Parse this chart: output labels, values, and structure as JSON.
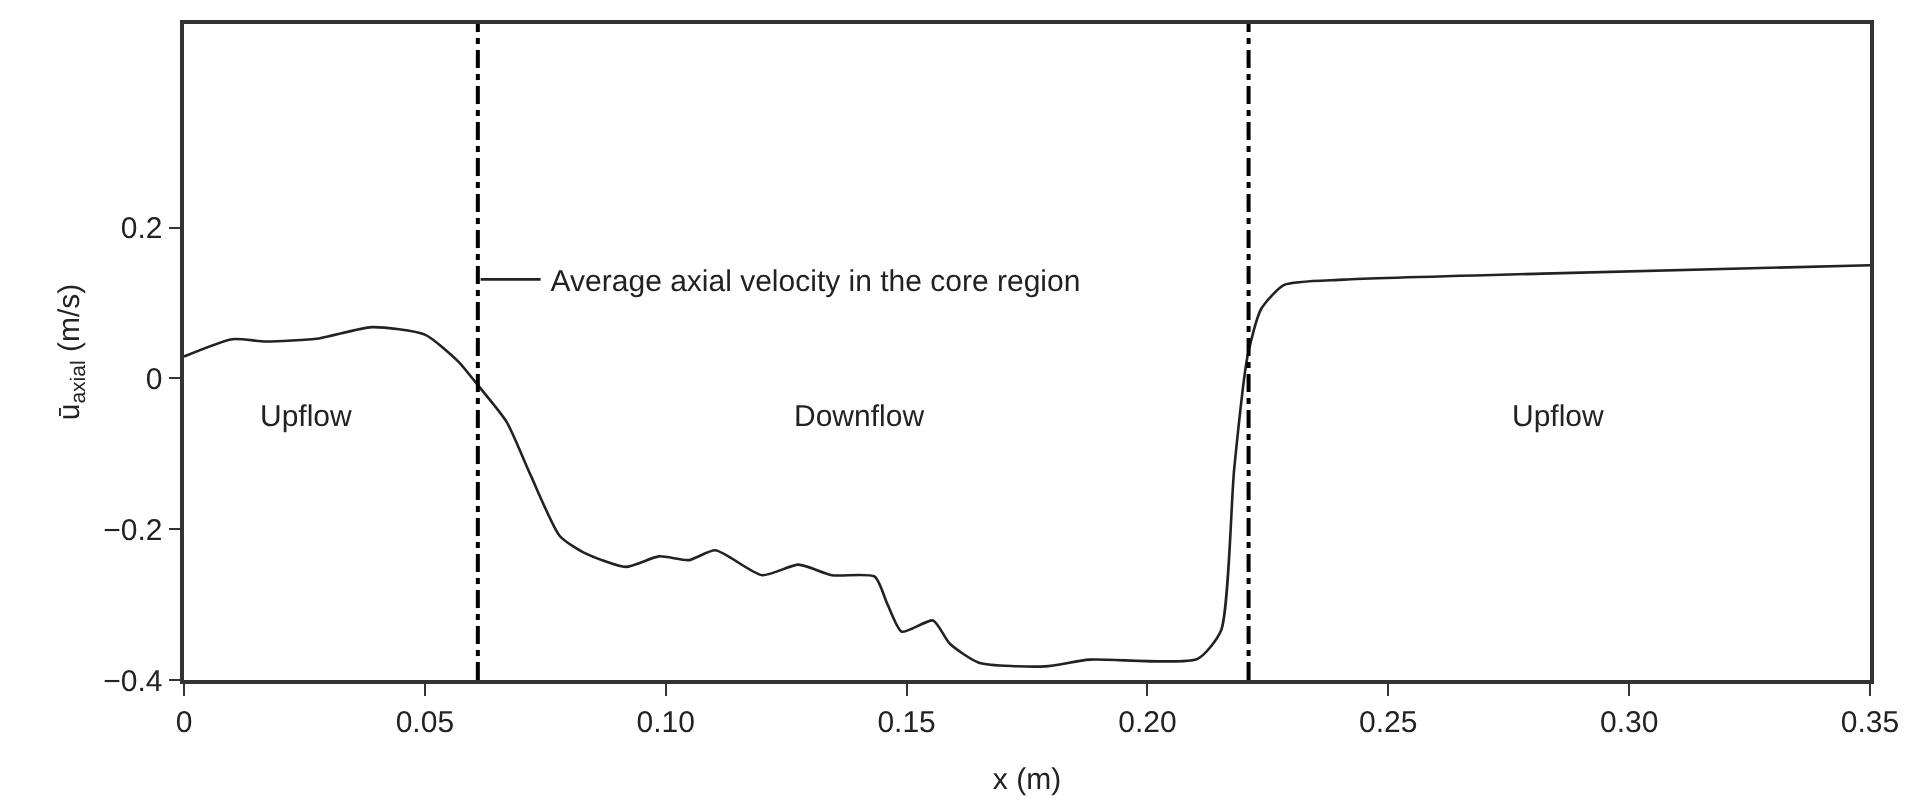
{
  "chart_data": {
    "type": "line",
    "xlabel": "x (m)",
    "ylabel": "ū$_{axial}$ (m/s)",
    "x": [
      0,
      0.01,
      0.017,
      0.028,
      0.039,
      0.05,
      0.057,
      0.061,
      0.067,
      0.072,
      0.078,
      0.083,
      0.0917,
      0.0986,
      0.1048,
      0.1103,
      0.12,
      0.1276,
      0.1345,
      0.1434,
      0.146,
      0.149,
      0.1555,
      0.159,
      0.165,
      0.1787,
      0.188,
      0.2104,
      0.2153,
      0.218,
      0.2208,
      0.2236,
      0.2284,
      0.2408,
      0.282,
      0.35
    ],
    "series": [
      {
        "name": "Average axial velocity in the core region",
        "color": "#222222",
        "values": [
          0.029,
          0.052,
          0.049,
          0.053,
          0.068,
          0.058,
          0.022,
          -0.009,
          -0.058,
          -0.129,
          -0.209,
          -0.231,
          -0.25,
          -0.236,
          -0.241,
          -0.228,
          -0.261,
          -0.247,
          -0.261,
          -0.263,
          -0.299,
          -0.336,
          -0.321,
          -0.352,
          -0.377,
          -0.382,
          -0.373,
          -0.372,
          -0.334,
          -0.121,
          0.03,
          0.092,
          0.124,
          0.131,
          0.139,
          0.15
        ]
      }
    ],
    "xlim": [
      0,
      0.35
    ],
    "xticks": [
      0,
      0.05,
      {
        "value": 0.1,
        "label": "0.10"
      },
      0.15,
      {
        "value": 0.2,
        "label": "0.20"
      },
      0.25,
      {
        "value": 0.3,
        "label": "0.30"
      },
      0.35
    ],
    "ylim": [
      -0.4,
      0.47
    ],
    "yticks": [
      {
        "value": -0.4,
        "label": "−0.4"
      },
      {
        "value": -0.2,
        "label": "−0.2"
      },
      0,
      0.2
    ],
    "ref_lines": [
      {
        "axis": "x",
        "value": 0.061,
        "color": "#000000",
        "line_style": "dashdot"
      },
      {
        "axis": "x",
        "value": 0.221,
        "color": "#000000",
        "line_style": "dashdot"
      }
    ],
    "annotations": [
      "Upflow",
      "Downflow",
      "Upflow"
    ],
    "legend": "top left",
    "marker": "none",
    "line_style": "solid"
  }
}
